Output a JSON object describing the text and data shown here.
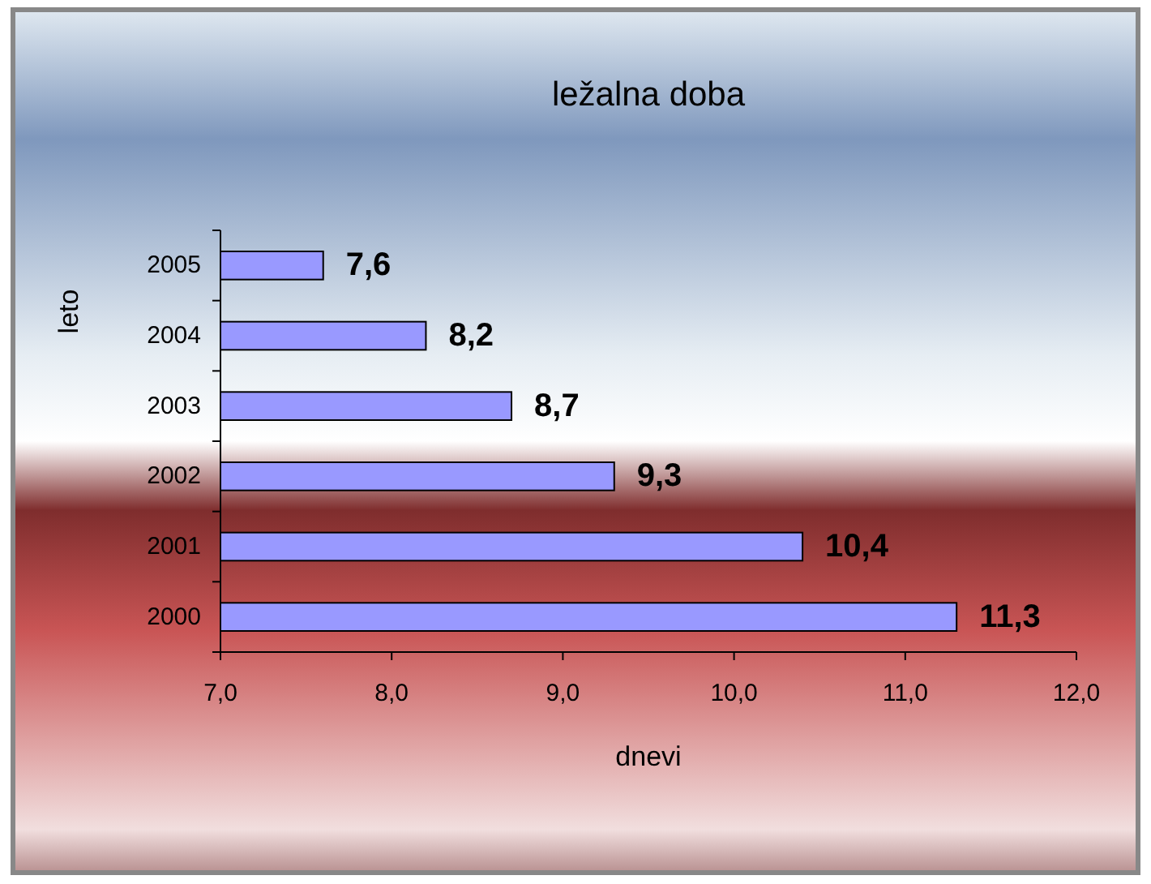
{
  "chart_data": {
    "type": "bar",
    "orientation": "horizontal",
    "title": "ležalna doba",
    "xlabel": "dnevi",
    "ylabel": "leto",
    "categories": [
      "2005",
      "2004",
      "2003",
      "2002",
      "2001",
      "2000"
    ],
    "values": [
      7.6,
      8.2,
      8.7,
      9.3,
      10.4,
      11.3
    ],
    "value_labels": [
      "7,6",
      "8,2",
      "8,7",
      "9,3",
      "10,4",
      "11,3"
    ],
    "color": "#9999ff",
    "xlim": [
      7,
      12
    ],
    "xticks": [
      {
        "value": 7,
        "label": "7,0"
      },
      {
        "value": 8,
        "label": "8,0"
      },
      {
        "value": 9,
        "label": "9,0"
      },
      {
        "value": 10,
        "label": "10,0"
      },
      {
        "value": 11,
        "label": "11,0"
      },
      {
        "value": 12,
        "label": "12,0"
      }
    ],
    "grid": false
  }
}
